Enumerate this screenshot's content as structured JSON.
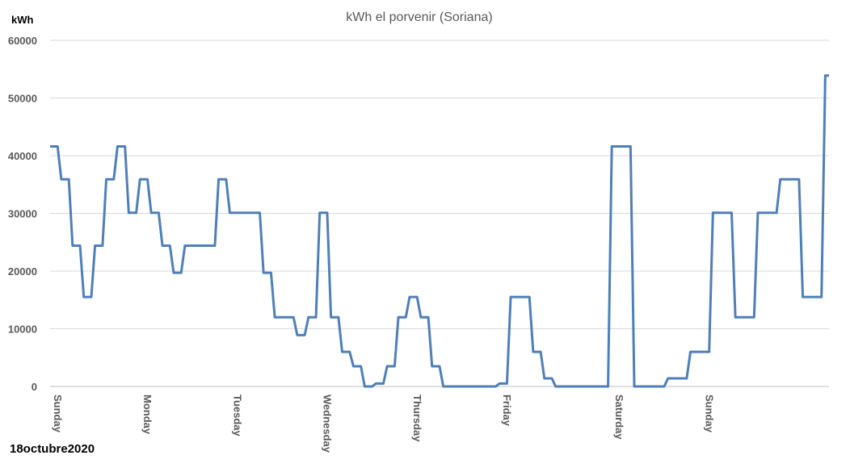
{
  "chart_data": {
    "type": "line",
    "title": "kWh el porvenir (Soriana)",
    "ylabel": "kWh",
    "xlabel": "",
    "ylim": [
      0,
      60000
    ],
    "yticks": [
      0,
      10000,
      20000,
      30000,
      40000,
      50000,
      60000
    ],
    "grid": true,
    "legend": "none",
    "line_color": "#4f7fb8",
    "day_labels": [
      "Sunday",
      "Monday",
      "Tuesday",
      "Wednesday",
      "Thursday",
      "Friday",
      "Saturday",
      "Sunday"
    ],
    "day_label_indices": [
      0,
      24,
      48,
      72,
      96,
      120,
      150,
      174
    ],
    "series": [
      {
        "values": [
          41600,
          41600,
          41600,
          35900,
          35900,
          35900,
          24400,
          24400,
          24400,
          15500,
          15500,
          15500,
          24400,
          24400,
          24400,
          35900,
          35900,
          35900,
          41600,
          41600,
          41600,
          30100,
          30100,
          30100,
          35900,
          35900,
          35900,
          30100,
          30100,
          30100,
          24400,
          24400,
          24400,
          19700,
          19700,
          19700,
          24400,
          24400,
          24400,
          24400,
          24400,
          24400,
          24400,
          24400,
          24400,
          35900,
          35900,
          35900,
          30100,
          30100,
          30100,
          30100,
          30100,
          30100,
          30100,
          30100,
          30100,
          19700,
          19700,
          19700,
          12000,
          12000,
          12000,
          12000,
          12000,
          12000,
          8900,
          8900,
          8900,
          12000,
          12000,
          12000,
          30100,
          30100,
          30100,
          12000,
          12000,
          12000,
          6000,
          6000,
          6000,
          3500,
          3500,
          3500,
          0,
          0,
          0,
          500,
          500,
          500,
          3500,
          3500,
          3500,
          12000,
          12000,
          12000,
          15500,
          15500,
          15500,
          12000,
          12000,
          12000,
          3500,
          3500,
          3500,
          0,
          0,
          0,
          0,
          0,
          0,
          0,
          0,
          0,
          0,
          0,
          0,
          0,
          0,
          0,
          500,
          500,
          500,
          15500,
          15500,
          15500,
          15500,
          15500,
          15500,
          6000,
          6000,
          6000,
          1400,
          1400,
          1400,
          0,
          0,
          0,
          0,
          0,
          0,
          0,
          0,
          0,
          0,
          0,
          0,
          0,
          0,
          0,
          41600,
          41600,
          41600,
          41600,
          41600,
          41600,
          0,
          0,
          0,
          0,
          0,
          0,
          0,
          0,
          0,
          1400,
          1400,
          1400,
          1400,
          1400,
          1400,
          6000,
          6000,
          6000,
          6000,
          6000,
          6000,
          30100,
          30100,
          30100,
          30100,
          30100,
          30100,
          12000,
          12000,
          12000,
          12000,
          12000,
          12000,
          30100,
          30100,
          30100,
          30100,
          30100,
          30100,
          35900,
          35900,
          35900,
          35900,
          35900,
          35900,
          15500,
          15500,
          15500,
          15500,
          15500,
          15500,
          53900,
          53900
        ]
      }
    ]
  },
  "footnote": "18octubre2020"
}
